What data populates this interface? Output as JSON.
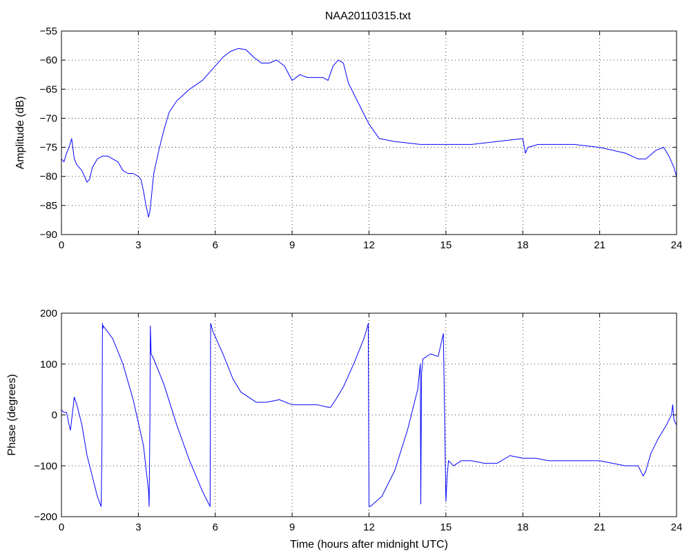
{
  "figure_title": "NAA20110315.txt",
  "chart_data": [
    {
      "type": "line",
      "title": "NAA20110315.txt",
      "xlabel": "",
      "ylabel": "Amplitude (dB)",
      "xlim": [
        0,
        24
      ],
      "ylim": [
        -90,
        -55
      ],
      "xticks": [
        0,
        3,
        6,
        9,
        12,
        15,
        18,
        21,
        24
      ],
      "yticks": [
        -90,
        -85,
        -80,
        -75,
        -70,
        -65,
        -60,
        -55
      ],
      "grid": true,
      "line_color": "#0000ff",
      "series": [
        {
          "x": [
            0,
            0.1,
            0.2,
            0.3,
            0.4,
            0.5,
            0.6,
            0.8,
            1.0,
            1.1,
            1.2,
            1.4,
            1.6,
            1.8,
            2.0,
            2.2,
            2.4,
            2.6,
            2.8,
            3.0,
            3.1,
            3.2,
            3.3,
            3.4,
            3.45,
            3.5,
            3.6,
            3.8,
            4.0,
            4.2,
            4.5,
            5.0,
            5.5,
            6.0,
            6.3,
            6.6,
            6.9,
            7.2,
            7.5,
            7.8,
            8.1,
            8.4,
            8.7,
            9.0,
            9.3,
            9.6,
            9.9,
            10.2,
            10.4,
            10.6,
            10.8,
            11.0,
            11.2,
            11.6,
            12.0,
            12.4,
            13.0,
            14.0,
            15.0,
            16.0,
            17.0,
            18.0,
            18.1,
            18.2,
            18.6,
            19.0,
            20.0,
            21.0,
            21.5,
            22.0,
            22.5,
            22.8,
            23.2,
            23.5,
            23.7,
            23.9,
            24.0
          ],
          "values": [
            -77,
            -77.5,
            -76,
            -75,
            -73.5,
            -77,
            -78,
            -79,
            -81,
            -80.5,
            -78.5,
            -77,
            -76.5,
            -76.5,
            -77,
            -77.5,
            -79,
            -79.5,
            -79.5,
            -80,
            -80.5,
            -82.5,
            -85,
            -87,
            -86,
            -84,
            -79.5,
            -75.5,
            -72,
            -69,
            -67,
            -65,
            -63.5,
            -61,
            -59.5,
            -58.5,
            -58,
            -58.2,
            -59.5,
            -60.5,
            -60.5,
            -60,
            -61,
            -63.5,
            -62.5,
            -63,
            -63,
            -63,
            -63.5,
            -61,
            -60,
            -60.5,
            -64,
            -67.5,
            -71,
            -73.5,
            -74,
            -74.5,
            -74.5,
            -74.5,
            -74,
            -73.5,
            -76,
            -75,
            -74.5,
            -74.5,
            -74.5,
            -75,
            -75.5,
            -76,
            -77,
            -77,
            -75.5,
            -75,
            -76.5,
            -78.5,
            -80
          ]
        }
      ]
    },
    {
      "type": "line",
      "title": "",
      "xlabel": "Time (hours after midnight UTC)",
      "ylabel": "Phase (degrees)",
      "xlim": [
        0,
        24
      ],
      "ylim": [
        -200,
        200
      ],
      "xticks": [
        0,
        3,
        6,
        9,
        12,
        15,
        18,
        21,
        24
      ],
      "yticks": [
        -200,
        -100,
        0,
        100,
        200
      ],
      "grid": true,
      "line_color": "#0000ff",
      "series": [
        {
          "x": [
            0,
            0.1,
            0.2,
            0.3,
            0.35,
            0.4,
            0.5,
            0.6,
            0.8,
            1.0,
            1.2,
            1.4,
            1.55,
            1.58,
            1.6,
            1.62,
            1.63,
            2.0,
            2.4,
            2.8,
            3.2,
            3.4,
            3.42,
            3.45,
            3.47,
            3.5,
            3.6,
            4.0,
            4.5,
            5.0,
            5.5,
            5.8,
            5.82,
            5.85,
            5.9,
            6.3,
            6.7,
            7.0,
            7.3,
            7.6,
            8.0,
            8.5,
            9.0,
            9.5,
            10.0,
            10.4,
            10.5,
            10.7,
            11.0,
            11.4,
            11.8,
            11.95,
            11.97,
            12.0,
            12.05,
            12.5,
            13.0,
            13.5,
            13.9,
            14.0,
            14.02,
            14.05,
            14.1,
            14.4,
            14.7,
            14.9,
            15.0,
            15.05,
            15.1,
            15.3,
            15.6,
            16.0,
            16.5,
            17.0,
            17.5,
            18.0,
            18.5,
            19.0,
            20.0,
            21.0,
            21.5,
            22.0,
            22.5,
            22.7,
            22.8,
            23.0,
            23.3,
            23.6,
            23.8,
            23.85,
            23.9,
            24.0
          ],
          "values": [
            10,
            5,
            5,
            -20,
            -30,
            -10,
            35,
            20,
            -20,
            -80,
            -120,
            -160,
            -180,
            -60,
            180,
            170,
            175,
            150,
            100,
            30,
            -60,
            -150,
            -180,
            -20,
            175,
            120,
            110,
            60,
            -20,
            -90,
            -150,
            -180,
            180,
            175,
            165,
            120,
            70,
            45,
            35,
            25,
            25,
            30,
            20,
            20,
            20,
            15,
            15,
            30,
            55,
            100,
            150,
            175,
            180,
            -180,
            -180,
            -160,
            -110,
            -30,
            50,
            100,
            -175,
            80,
            110,
            120,
            115,
            160,
            -170,
            -120,
            -90,
            -100,
            -90,
            -90,
            -95,
            -95,
            -80,
            -85,
            -85,
            -90,
            -90,
            -90,
            -95,
            -100,
            -100,
            -120,
            -110,
            -75,
            -45,
            -20,
            0,
            20,
            -10,
            -20
          ]
        }
      ]
    }
  ]
}
